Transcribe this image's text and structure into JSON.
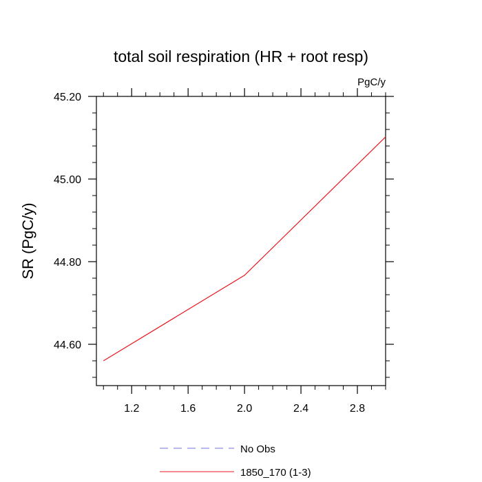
{
  "chart_data": {
    "type": "line",
    "title": "total soil respiration (HR + root resp)",
    "units_label": "PgC/y",
    "xlabel": "",
    "ylabel": "SR  (PgC/y)",
    "xlim": [
      0.95,
      3.0
    ],
    "ylim": [
      44.5,
      45.2
    ],
    "x_major_ticks": [
      1.2,
      1.6,
      2.0,
      2.4,
      2.8
    ],
    "x_tick_labels": [
      "1.2",
      "1.6",
      "2.0",
      "2.4",
      "2.8"
    ],
    "x_minor_step": 0.1,
    "y_major_ticks": [
      44.6,
      44.8,
      45.0,
      45.2
    ],
    "y_tick_labels": [
      "44.60",
      "44.80",
      "45.00",
      "45.20"
    ],
    "y_minor_step": 0.04,
    "series": [
      {
        "name": "1850_170 (1-3)",
        "color": "#e8141c",
        "style": "solid",
        "x": [
          1.0,
          2.0,
          3.0
        ],
        "y": [
          44.56,
          44.767,
          45.102
        ]
      }
    ],
    "legend": {
      "placement": "bottom",
      "entries": [
        {
          "label": "No Obs",
          "color": "#7070e0",
          "style": "dashed"
        },
        {
          "label": "1850_170 (1-3)",
          "color": "#e8141c",
          "style": "solid"
        }
      ]
    }
  }
}
